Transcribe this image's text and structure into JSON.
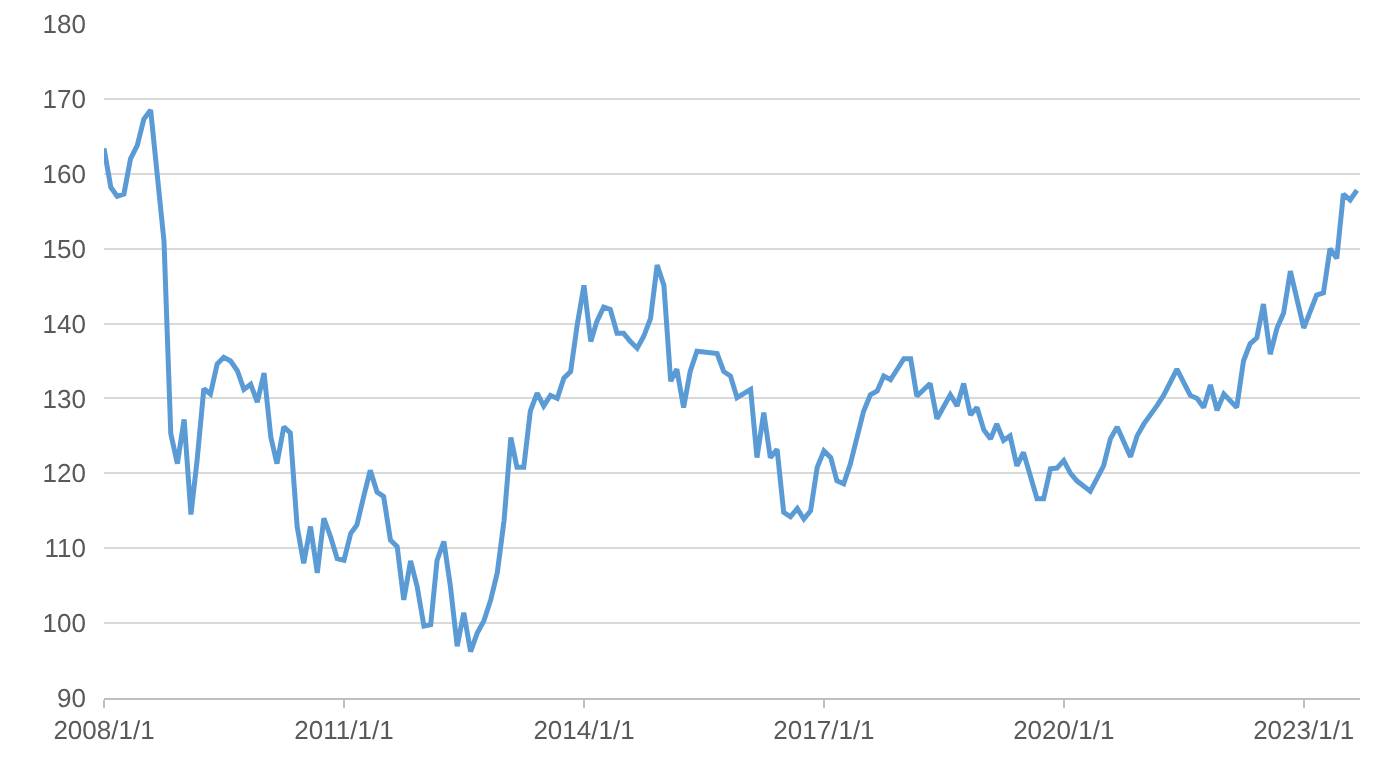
{
  "chart_data": {
    "type": "line",
    "grid": "y",
    "marker": "none",
    "line_style": "solid",
    "x": [
      "2008-01",
      "2008-02",
      "2008-03",
      "2008-04",
      "2008-05",
      "2008-06",
      "2008-07",
      "2008-08",
      "2008-10",
      "2008-11",
      "2008-12",
      "2009-01",
      "2009-02",
      "2009-03",
      "2009-04",
      "2009-05",
      "2009-06",
      "2009-07",
      "2009-08",
      "2009-09",
      "2009-10",
      "2009-11",
      "2009-12",
      "2010-01",
      "2010-02",
      "2010-03",
      "2010-04",
      "2010-05",
      "2010-06",
      "2010-07",
      "2010-08",
      "2010-09",
      "2010-10",
      "2010-11",
      "2010-12",
      "2011-01",
      "2011-02",
      "2011-03",
      "2011-04",
      "2011-05",
      "2011-06",
      "2011-07",
      "2011-08",
      "2011-09",
      "2011-10",
      "2011-11",
      "2011-12",
      "2012-01",
      "2012-02",
      "2012-03",
      "2012-04",
      "2012-05",
      "2012-06",
      "2012-07",
      "2012-08",
      "2012-09",
      "2012-10",
      "2012-11",
      "2012-12",
      "2013-01",
      "2013-02",
      "2013-03",
      "2013-04",
      "2013-05",
      "2013-06",
      "2013-07",
      "2013-08",
      "2013-09",
      "2013-10",
      "2013-11",
      "2013-12",
      "2014-01",
      "2014-02",
      "2014-03",
      "2014-04",
      "2014-05",
      "2014-06",
      "2014-07",
      "2014-08",
      "2014-09",
      "2014-10",
      "2014-11",
      "2014-12",
      "2015-01",
      "2015-02",
      "2015-03",
      "2015-04",
      "2015-05",
      "2015-06",
      "2015-08",
      "2015-09",
      "2015-10",
      "2015-11",
      "2015-12",
      "2016-02",
      "2016-03",
      "2016-04",
      "2016-05",
      "2016-06",
      "2016-07",
      "2016-08",
      "2016-09",
      "2016-10",
      "2016-11",
      "2016-12",
      "2017-01",
      "2017-02",
      "2017-03",
      "2017-04",
      "2017-05",
      "2017-07",
      "2017-08",
      "2017-09",
      "2017-10",
      "2017-11",
      "2018-01",
      "2018-02",
      "2018-03",
      "2018-05",
      "2018-06",
      "2018-08",
      "2018-09",
      "2018-10",
      "2018-11",
      "2018-12",
      "2019-01",
      "2019-02",
      "2019-03",
      "2019-04",
      "2019-05",
      "2019-06",
      "2019-07",
      "2019-09",
      "2019-10",
      "2019-11",
      "2019-12",
      "2020-01",
      "2020-02",
      "2020-03",
      "2020-05",
      "2020-07",
      "2020-08",
      "2020-09",
      "2020-11",
      "2020-12",
      "2021-01",
      "2021-03",
      "2021-04",
      "2021-06",
      "2021-08",
      "2021-09",
      "2021-10",
      "2021-11",
      "2021-12",
      "2022-01",
      "2022-03",
      "2022-04",
      "2022-05",
      "2022-06",
      "2022-07",
      "2022-08",
      "2022-09",
      "2022-10",
      "2022-11",
      "2023-01",
      "2023-03",
      "2023-04",
      "2023-05",
      "2023-06",
      "2023-07",
      "2023-08",
      "2023-09"
    ],
    "series": [
      {
        "color": "#5b9bd5",
        "values": [
          163.4,
          158.2,
          157,
          157.3,
          162,
          163.8,
          167.3,
          168.5,
          151,
          125.3,
          121.3,
          127.2,
          114.5,
          121.7,
          131.3,
          130.6,
          134.6,
          135.5,
          135,
          133.7,
          131.2,
          131.9,
          129.5,
          133.4,
          124.8,
          121.3,
          126.2,
          125.4,
          112.9,
          108,
          112.9,
          106.7,
          114,
          111.5,
          108.6,
          108.4,
          112,
          113.1,
          116.9,
          120.4,
          117.5,
          116.9,
          111.1,
          110.2,
          103.1,
          108.3,
          104.9,
          99.6,
          99.8,
          108.4,
          110.9,
          104.9,
          96.9,
          101.4,
          96.2,
          98.7,
          100.3,
          103.1,
          106.7,
          113.7,
          124.8,
          120.8,
          120.8,
          128.3,
          130.7,
          129,
          130.4,
          130,
          132.7,
          133.6,
          139.8,
          145.1,
          137.6,
          140.3,
          142.2,
          141.9,
          138.7,
          138.7,
          137.6,
          136.7,
          138.3,
          140.7,
          147.8,
          145.1,
          132.3,
          133.9,
          128.8,
          133.6,
          136.3,
          136.1,
          136,
          133.6,
          133,
          130.1,
          131.2,
          122.1,
          128.1,
          122.1,
          123.2,
          114.8,
          114.2,
          115.3,
          113.9,
          115,
          120.8,
          123,
          122.1,
          119,
          118.6,
          121.2,
          128.3,
          130.5,
          131,
          133,
          132.5,
          135.3,
          135.3,
          130.3,
          132,
          127.3,
          130.5,
          129,
          132,
          127.8,
          128.8,
          125.8,
          124.6,
          126.6,
          124.4,
          125,
          121,
          122.8,
          116.6,
          116.6,
          120.6,
          120.7,
          121.7,
          120,
          119,
          117.6,
          121,
          124.6,
          126.2,
          122.2,
          125,
          126.6,
          129,
          130.4,
          133.9,
          130.4,
          130,
          128.8,
          131.8,
          128.4,
          130.6,
          128.8,
          135,
          137.3,
          138.1,
          142.6,
          135.9,
          139.4,
          141.4,
          147,
          139.4,
          143.8,
          144.1,
          150,
          148.7,
          157.3,
          156.5,
          157.8
        ]
      }
    ],
    "xlim": [
      "2008-01-01",
      "2023-09-15"
    ],
    "xticks": [
      {
        "value": "2008-01-01",
        "label": "2008/1/1"
      },
      {
        "value": "2011-01-01",
        "label": "2011/1/1"
      },
      {
        "value": "2014-01-01",
        "label": "2014/1/1"
      },
      {
        "value": "2017-01-01",
        "label": "2017/1/1"
      },
      {
        "value": "2020-01-01",
        "label": "2020/1/1"
      },
      {
        "value": "2023-01-01",
        "label": "2023/1/1"
      }
    ],
    "ylim": [
      90,
      180
    ],
    "yticks": [
      90,
      100,
      110,
      120,
      130,
      140,
      150,
      160,
      170,
      180
    ]
  }
}
